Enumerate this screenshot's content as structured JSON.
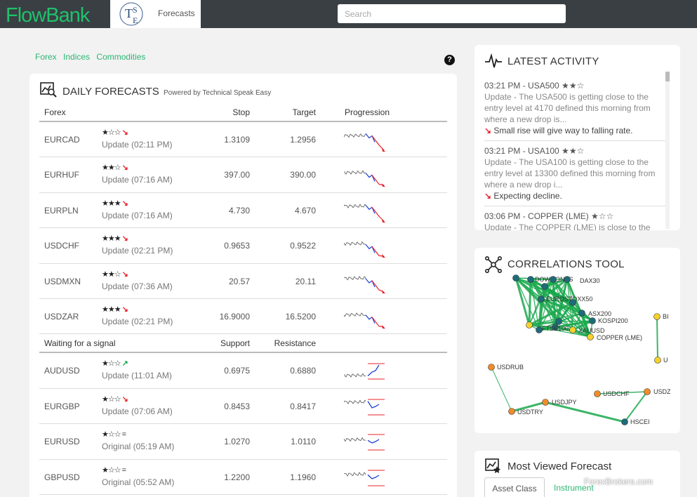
{
  "app": {
    "logo": "FlowBank",
    "tab_label": "Forecasts",
    "tab_logo_text": "TSE"
  },
  "search": {
    "placeholder": "Search"
  },
  "subnav": {
    "items": [
      "Forex",
      "Indices",
      "Commodities"
    ]
  },
  "help": "?",
  "forecasts": {
    "title": "DAILY FORECASTS",
    "subtitle": "Powered by Technical Speak Easy",
    "header1": {
      "c1": "Forex",
      "c2": "Stop",
      "c3": "Target",
      "c4": "Progression"
    },
    "rows1": [
      {
        "sym": "EURCAD",
        "stars": "★☆☆",
        "dir": "↘",
        "update": "Update (02:11 PM)",
        "v1": "1.3109",
        "v2": "1.2956"
      },
      {
        "sym": "EURHUF",
        "stars": "★★☆",
        "dir": "↘",
        "update": "Update (07:16 AM)",
        "v1": "397.00",
        "v2": "390.00"
      },
      {
        "sym": "EURPLN",
        "stars": "★★★",
        "dir": "↘",
        "update": "Update (07:16 AM)",
        "v1": "4.730",
        "v2": "4.670"
      },
      {
        "sym": "USDCHF",
        "stars": "★★★",
        "dir": "↘",
        "update": "Update (02:21 PM)",
        "v1": "0.9653",
        "v2": "0.9522"
      },
      {
        "sym": "USDMXN",
        "stars": "★★☆",
        "dir": "↘",
        "update": "Update (07:36 AM)",
        "v1": "20.57",
        "v2": "20.11"
      },
      {
        "sym": "USDZAR",
        "stars": "★★★",
        "dir": "↘",
        "update": "Update (02:21 PM)",
        "v1": "16.9000",
        "v2": "16.5200"
      }
    ],
    "header2": {
      "c1": "Waiting for a signal",
      "c2": "Support",
      "c3": "Resistance"
    },
    "rows2": [
      {
        "sym": "AUDUSD",
        "stars": "★☆☆",
        "dir": "↗",
        "update": "Update (11:01 AM)",
        "v1": "0.6975",
        "v2": "0.6880"
      },
      {
        "sym": "EURGBP",
        "stars": "★☆☆",
        "dir": "↘",
        "update": "Update (07:06 AM)",
        "v1": "0.8453",
        "v2": "0.8417"
      },
      {
        "sym": "EURUSD",
        "stars": "★☆☆",
        "dir": "=",
        "update": "Original (05:19 AM)",
        "v1": "1.0270",
        "v2": "1.0110"
      },
      {
        "sym": "GBPUSD",
        "stars": "★☆☆",
        "dir": "=",
        "update": "Original (05:52 AM)",
        "v1": "1.2200",
        "v2": "1.1960"
      }
    ]
  },
  "activity": {
    "title": "LATEST ACTIVITY",
    "items": [
      {
        "time": "03:21 PM - USA500 ★★☆",
        "desc": "Update - The USA500 is getting close to the entry level at 4170 defined this morning from where a new drop is...",
        "summary": "Small rise will give way to falling rate."
      },
      {
        "time": "03:21 PM - USA100 ★★☆",
        "desc": "Update - The USA100 is getting close to the entry level at 13300 defined this morning from where a new drop i...",
        "summary": "Expecting decline."
      },
      {
        "time": "03:06 PM - COPPER (LME) ★☆☆",
        "desc": "Update - The COPPER (LME) is close to the",
        "summary": ""
      }
    ]
  },
  "correlations": {
    "title": "CORRELATIONS TOOL",
    "labels": [
      "DOW JONES",
      "DAX30",
      "EUROSTOXX50",
      "ASX200",
      "KOSPI200",
      "XAUUSD",
      "FTSE100",
      "COPPER (LME)",
      "USDRUB",
      "USDTRY",
      "USDJPY",
      "USDCHF",
      "USDZ",
      "HSCEI",
      "BI",
      "U"
    ]
  },
  "most_viewed": {
    "title": "Most Viewed Forecast",
    "tab1": "Asset Class",
    "tab2": "Instrument"
  },
  "watermark": "ForexBrokers.com",
  "colors": {
    "brand": "#1fc16a",
    "link": "#2bb673",
    "down": "#e8232b",
    "up": "#1aa84e",
    "topbar": "#3a3f44"
  }
}
